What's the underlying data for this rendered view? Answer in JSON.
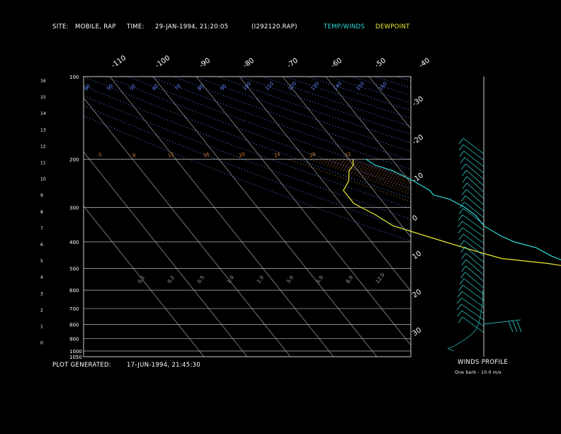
{
  "header": {
    "site_label": "SITE:",
    "site_value": "MOBILE, RAP",
    "time_label": "TIME:",
    "time_value": "29-JAN-1994, 21:20:05",
    "file": "(I292120.RAP)",
    "legend_temp": "TEMP/WINDS",
    "legend_dew": "DEWPOINT"
  },
  "footer": {
    "generated_label": "PLOT GENERATED:",
    "generated_value": "17-JUN-1994, 21:45:30"
  },
  "winds_panel": {
    "title": "WINDS PROFILE",
    "note": "One barb - 10.0 m/s"
  },
  "colors": {
    "temp": "#33dddd",
    "dewpoint": "#eeee33",
    "isobar": "#bbbbbb",
    "dry_adiabat": "#5577ee",
    "moist_adiabat": "#cc7733",
    "mixing_ratio": "#cc4444"
  },
  "chart_data": {
    "type": "line",
    "pressure_levels": [
      100,
      200,
      300,
      400,
      500,
      600,
      700,
      800,
      900,
      1000,
      1050
    ],
    "height_ticks": [
      "16",
      "15",
      "14",
      "13",
      "12",
      "11",
      "10",
      "9",
      "8",
      "7",
      "6",
      "5",
      "4",
      "3",
      "2",
      "1",
      "0"
    ],
    "top_temp_labels": [
      "-110",
      "-100",
      "-90",
      "-80",
      "-70",
      "-60",
      "-50",
      "-40"
    ],
    "right_temp_labels": [
      "-30",
      "-20",
      "-10",
      "0",
      "10",
      "20",
      "30"
    ],
    "theta_labels": [
      "60",
      "50",
      "50",
      "60",
      "70",
      "80",
      "90",
      "100",
      "110",
      "120",
      "130",
      "140",
      "150",
      "160"
    ],
    "mixing_labels": [
      "0.1",
      "0.2",
      "0.5",
      "1.0",
      "2.0",
      "3.0",
      "5.0",
      "8.0",
      "12.0"
    ],
    "moist_labels": [
      "-5",
      "8",
      "12",
      "16",
      "20",
      "24",
      "28",
      "32"
    ],
    "series": [
      {
        "name": "TEMP/WINDS",
        "points": [
          [
            1025,
            9
          ],
          [
            1000,
            6
          ],
          [
            970,
            2
          ],
          [
            940,
            -1
          ],
          [
            900,
            -4
          ],
          [
            850,
            -8
          ],
          [
            800,
            -11
          ],
          [
            750,
            -13
          ],
          [
            700,
            -17
          ],
          [
            660,
            -20
          ],
          [
            640,
            -26
          ],
          [
            600,
            -27
          ],
          [
            560,
            -29
          ],
          [
            520,
            -31
          ],
          [
            500,
            -35
          ],
          [
            480,
            -38
          ],
          [
            450,
            -41
          ],
          [
            420,
            -43
          ],
          [
            400,
            -47
          ],
          [
            380,
            -49
          ],
          [
            350,
            -51
          ],
          [
            320,
            -51
          ],
          [
            300,
            -52
          ],
          [
            280,
            -54
          ],
          [
            270,
            -57
          ],
          [
            260,
            -57
          ],
          [
            240,
            -59
          ],
          [
            220,
            -62
          ],
          [
            210,
            -65
          ],
          [
            200,
            -66
          ]
        ]
      },
      {
        "name": "DEWPOINT",
        "points": [
          [
            900,
            -12
          ],
          [
            880,
            -10
          ],
          [
            850,
            -10
          ],
          [
            800,
            -12
          ],
          [
            760,
            -13
          ],
          [
            720,
            -15
          ],
          [
            680,
            -16
          ],
          [
            650,
            -22
          ],
          [
            620,
            -25
          ],
          [
            600,
            -29
          ],
          [
            560,
            -31
          ],
          [
            520,
            -34
          ],
          [
            500,
            -37
          ],
          [
            480,
            -43
          ],
          [
            460,
            -53
          ],
          [
            430,
            -58
          ],
          [
            400,
            -63
          ],
          [
            350,
            -72
          ],
          [
            320,
            -74
          ],
          [
            290,
            -77
          ],
          [
            260,
            -77
          ],
          [
            240,
            -74
          ],
          [
            220,
            -72
          ],
          [
            210,
            -70
          ],
          [
            200,
            -69
          ]
        ]
      }
    ],
    "wind_profile": [
      [
        1000,
        120
      ],
      [
        980,
        145
      ],
      [
        960,
        120
      ],
      [
        940,
        104
      ],
      [
        920,
        88
      ],
      [
        900,
        70
      ],
      [
        880,
        56
      ],
      [
        860,
        44
      ],
      [
        840,
        34
      ],
      [
        800,
        22
      ],
      [
        750,
        14
      ],
      [
        700,
        8
      ],
      [
        650,
        5
      ],
      [
        600,
        4
      ]
    ]
  }
}
